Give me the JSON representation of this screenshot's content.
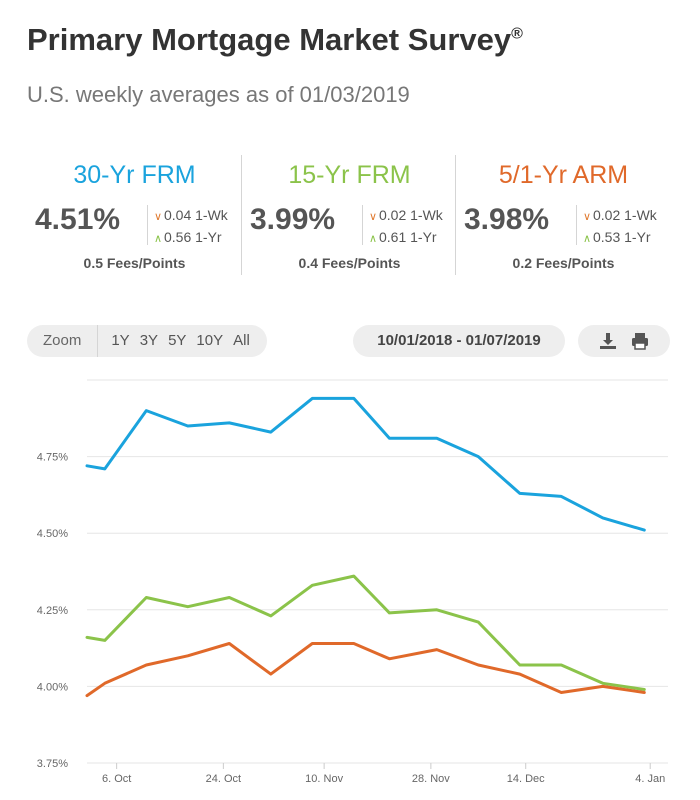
{
  "header": {
    "title": "Primary Mortgage Market Survey",
    "title_mark": "®",
    "subtitle": "U.S. weekly averages as of 01/03/2019"
  },
  "rates": [
    {
      "name": "30-Yr FRM",
      "value": "4.51%",
      "wk_change": "0.04 1-Wk",
      "wk_dir": "down",
      "yr_change": "0.56 1-Yr",
      "yr_dir": "up",
      "fees": "0.5 Fees/Points",
      "color": "#1aa3dd"
    },
    {
      "name": "15-Yr FRM",
      "value": "3.99%",
      "wk_change": "0.02 1-Wk",
      "wk_dir": "down",
      "yr_change": "0.61 1-Yr",
      "yr_dir": "up",
      "fees": "0.4 Fees/Points",
      "color": "#8bc34a"
    },
    {
      "name": "5/1-Yr ARM",
      "value": "3.98%",
      "wk_change": "0.02 1-Wk",
      "wk_dir": "down",
      "yr_change": "0.53 1-Yr",
      "yr_dir": "up",
      "fees": "0.2 Fees/Points",
      "color": "#e0692a"
    }
  ],
  "controls": {
    "zoom_label": "Zoom",
    "zoom_options": [
      "1Y",
      "3Y",
      "5Y",
      "10Y",
      "All"
    ],
    "date_range": "10/01/2018 - 01/07/2019",
    "download_icon": "download-icon",
    "print_icon": "print-icon"
  },
  "chart_data": {
    "type": "line",
    "x": [
      "2018-10-04",
      "2018-10-11",
      "2018-10-18",
      "2018-10-25",
      "2018-11-01",
      "2018-11-08",
      "2018-11-15",
      "2018-11-21",
      "2018-11-29",
      "2018-12-06",
      "2018-12-13",
      "2018-12-20",
      "2018-12-27",
      "2019-01-03"
    ],
    "series": [
      {
        "values": [
          4.71,
          4.9,
          4.85,
          4.86,
          4.83,
          4.94,
          4.94,
          4.81,
          4.81,
          4.75,
          4.63,
          4.62,
          4.55,
          4.51
        ],
        "color": "#1aa3dd"
      },
      {
        "values": [
          4.15,
          4.29,
          4.26,
          4.29,
          4.23,
          4.33,
          4.36,
          4.24,
          4.25,
          4.21,
          4.07,
          4.07,
          4.01,
          3.99
        ],
        "color": "#8bc34a"
      },
      {
        "values": [
          4.01,
          4.07,
          4.1,
          4.14,
          4.04,
          4.14,
          4.14,
          4.09,
          4.12,
          4.07,
          4.04,
          3.98,
          4.0,
          3.98
        ],
        "color": "#e0692a"
      }
    ],
    "pre_range_values": [
      4.72,
      4.16,
      3.97
    ],
    "ylim": [
      3.75,
      5.0
    ],
    "y_ticks": [
      "3.75%",
      "4.00%",
      "4.25%",
      "4.50%",
      "4.75%"
    ],
    "x_tick_labels": [
      "6. Oct",
      "24. Oct",
      "10. Nov",
      "28. Nov",
      "14. Dec",
      "4. Jan"
    ],
    "grid": true,
    "title": "",
    "xlabel": "",
    "ylabel": ""
  }
}
